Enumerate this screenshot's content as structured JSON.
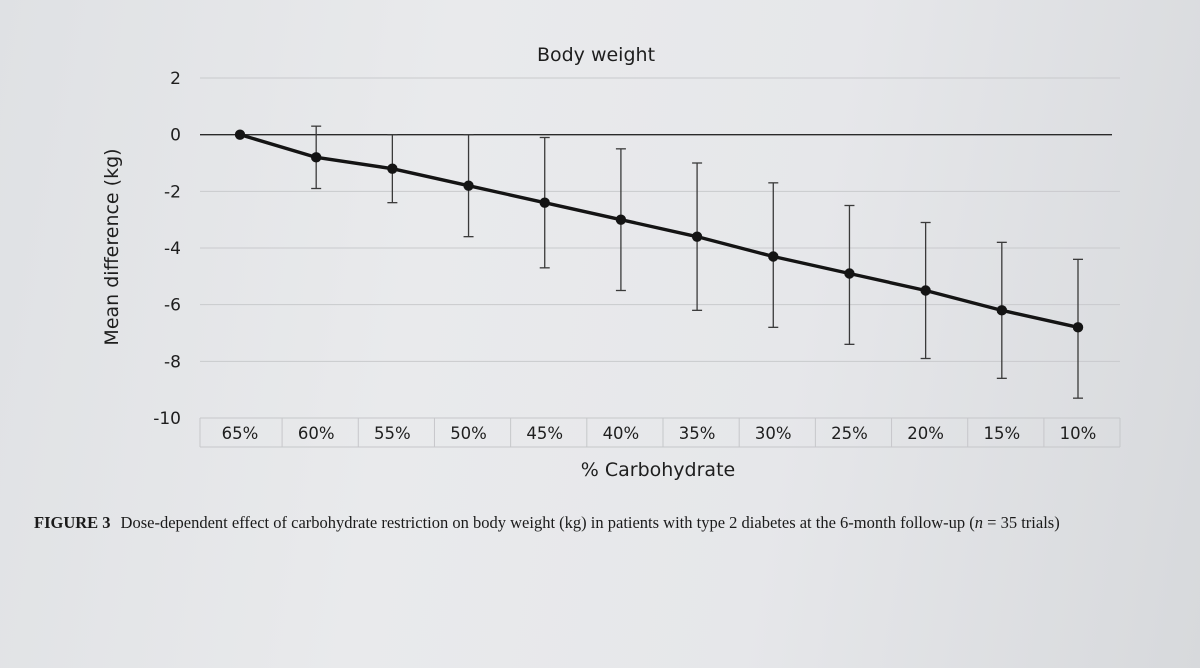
{
  "chart_data": {
    "type": "line",
    "title": "Body weight",
    "xlabel": "% Carbohydrate",
    "ylabel": "Mean difference (kg)",
    "categories": [
      "65%",
      "60%",
      "55%",
      "50%",
      "45%",
      "40%",
      "35%",
      "30%",
      "25%",
      "20%",
      "15%",
      "10%"
    ],
    "y_ticks": [
      "2",
      "0",
      "-2",
      "-4",
      "-6",
      "-8",
      "-10"
    ],
    "ylim": [
      -10,
      2
    ],
    "grid": true,
    "series": [
      {
        "values": [
          0,
          -0.8,
          -1.2,
          -1.8,
          -2.4,
          -3.0,
          -3.6,
          -4.3,
          -4.9,
          -5.5,
          -6.2,
          -6.8
        ],
        "ci_upper": [
          0,
          0.3,
          0.0,
          0.0,
          -0.1,
          -0.5,
          -1.0,
          -1.7,
          -2.5,
          -3.1,
          -3.8,
          -4.4
        ],
        "ci_lower": [
          0,
          -1.9,
          -2.4,
          -3.6,
          -4.7,
          -5.5,
          -6.2,
          -6.8,
          -7.4,
          -7.9,
          -8.6,
          -9.3
        ]
      }
    ],
    "color": "#141414"
  },
  "caption": {
    "label": "FIGURE 3",
    "text_before": "Dose-dependent effect of carbohydrate restriction on body weight (kg) in patients with type 2 diabetes at the 6-month follow-up (",
    "n_symbol": "n",
    "text_after": " = 35 trials)"
  }
}
